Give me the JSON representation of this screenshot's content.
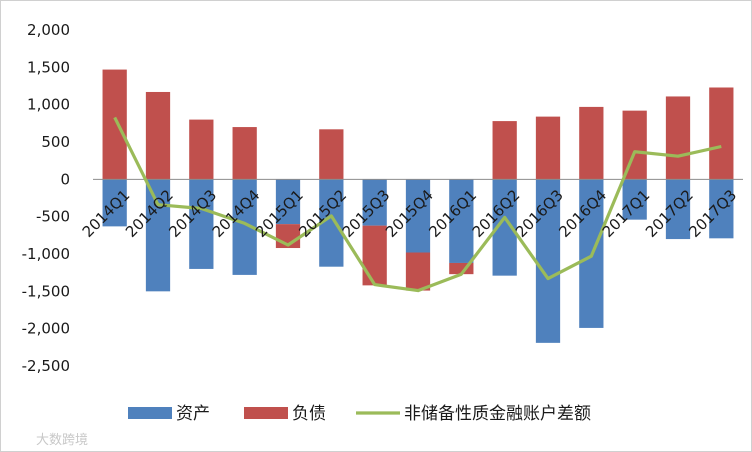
{
  "chart_data": {
    "type": "bar",
    "categories": [
      "2014Q1",
      "2014Q2",
      "2014Q3",
      "2014Q4",
      "2015Q1",
      "2015Q2",
      "2015Q3",
      "2015Q4",
      "2016Q1",
      "2016Q2",
      "2016Q3",
      "2016Q4",
      "2017Q1",
      "2017Q2",
      "2017Q3"
    ],
    "series": [
      {
        "name": "资产",
        "kind": "bar",
        "color": "#4f81bd",
        "values": [
          -630,
          -1500,
          -1200,
          -1280,
          -600,
          -1170,
          -620,
          -980,
          -1120,
          -1290,
          -2190,
          -1990,
          -540,
          -800,
          -790
        ]
      },
      {
        "name": "负债",
        "kind": "bar",
        "color": "#c0504d",
        "values": [
          1470,
          1170,
          800,
          700,
          -320,
          670,
          -800,
          -510,
          -150,
          780,
          840,
          970,
          920,
          1110,
          1230
        ]
      },
      {
        "name": "非储备性质金融账户差额",
        "kind": "line",
        "color": "#9bbb59",
        "values": [
          830,
          -340,
          -390,
          -590,
          -880,
          -490,
          -1410,
          -1490,
          -1270,
          -510,
          -1330,
          -1030,
          370,
          310,
          440
        ]
      }
    ],
    "ylim": [
      -2500,
      2000
    ],
    "yticks": [
      "2,000",
      "1,500",
      "1,000",
      "500",
      "0",
      "-500",
      "-1,000",
      "-1,500",
      "-2,000",
      "-2,500"
    ],
    "ytick_values": [
      2000,
      1500,
      1000,
      500,
      0,
      -500,
      -1000,
      -1500,
      -2000,
      -2500
    ],
    "legend_position": "bottom",
    "grid": false
  },
  "watermark": "大数跨境"
}
